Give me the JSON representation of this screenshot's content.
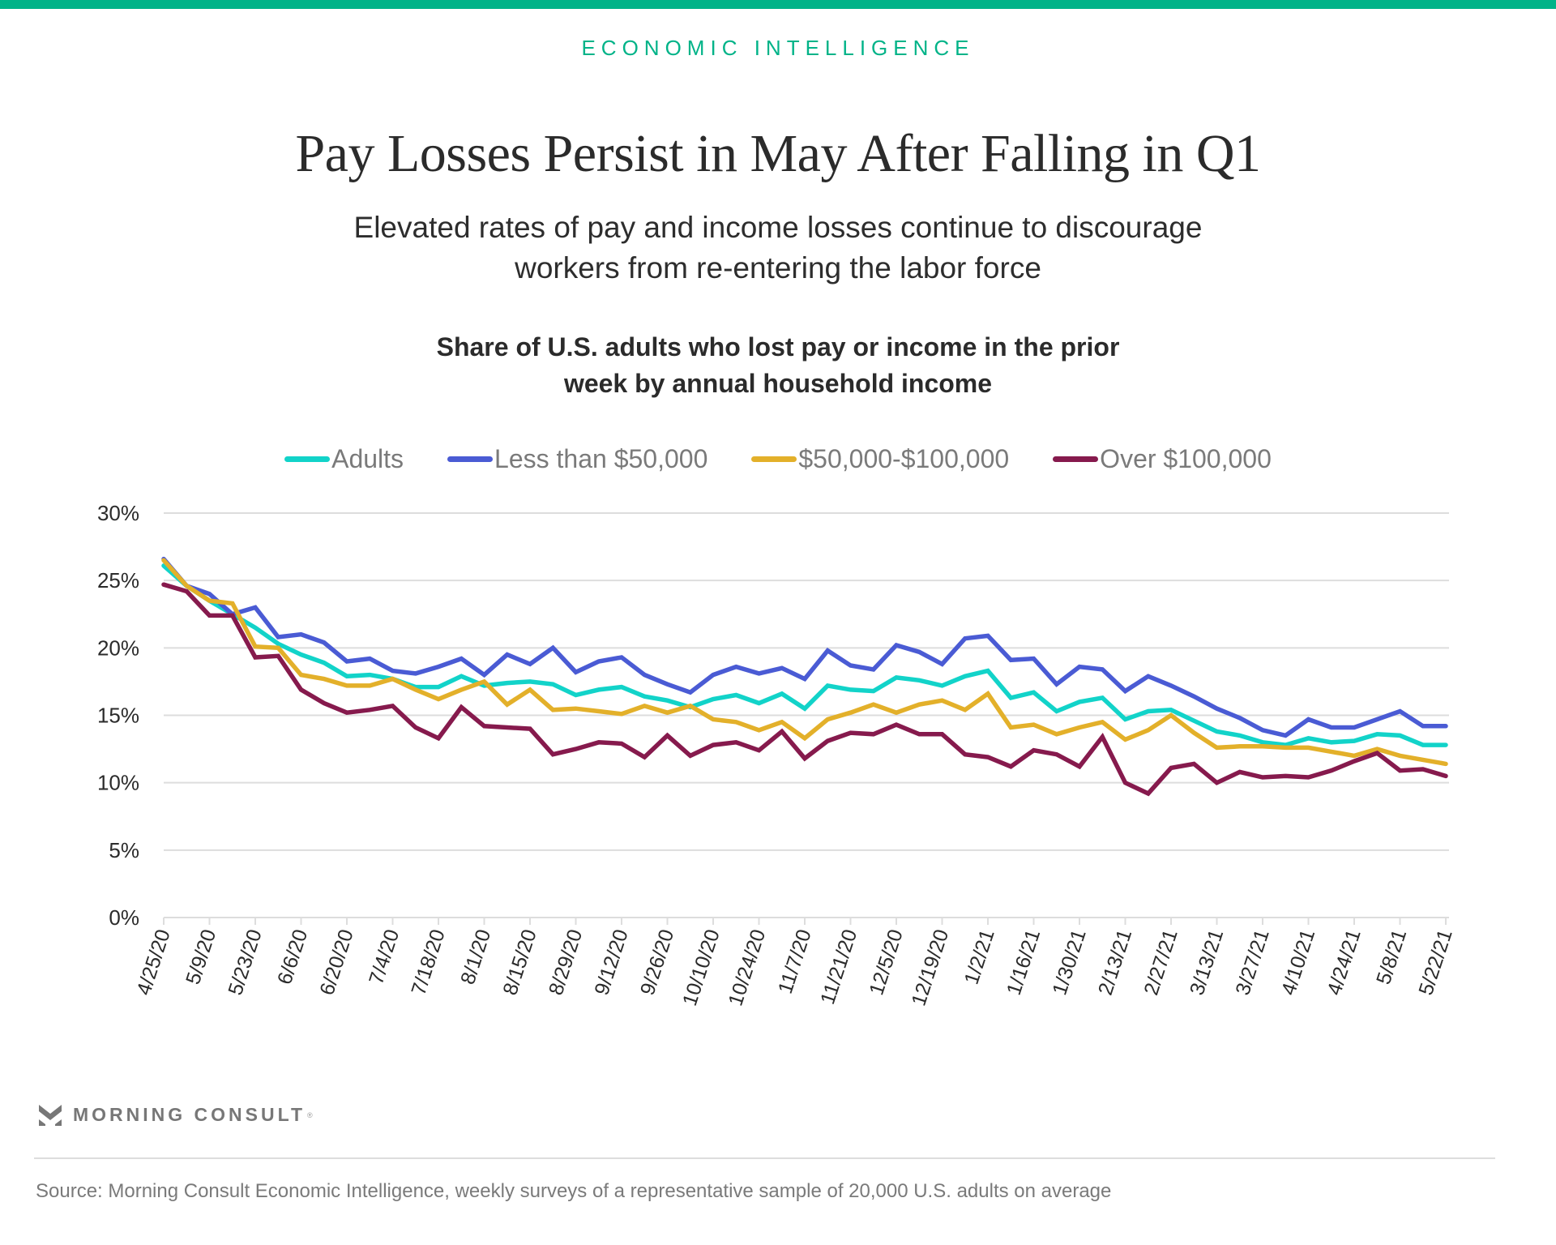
{
  "header": {
    "kicker": "ECONOMIC INTELLIGENCE",
    "title": "Pay Losses Persist in May After Falling in Q1",
    "subtitle_lines": [
      "Elevated rates of pay and income losses continue to discourage",
      "workers from re-entering the labor force"
    ]
  },
  "colors": {
    "brand": "#00b388",
    "adults": "#12d3c9",
    "less_than_50k": "#4a5bd4",
    "mid_income": "#e3b02a",
    "over_100k": "#861a4d",
    "grid": "#dddddd"
  },
  "chart_data": {
    "type": "line",
    "title_lines": [
      "Share of U.S. adults who lost pay or income in the prior",
      "week by annual household income"
    ],
    "xlabel": "",
    "ylabel": "",
    "ylim": [
      0,
      30
    ],
    "yticks": [
      0,
      5,
      10,
      15,
      20,
      25,
      30
    ],
    "ytick_labels": [
      "0%",
      "5%",
      "10%",
      "15%",
      "20%",
      "25%",
      "30%"
    ],
    "grid": true,
    "legend_position": "top",
    "x_tick_labels": [
      "4/25/20",
      "5/9/20",
      "5/23/20",
      "6/6/20",
      "6/20/20",
      "7/4/20",
      "7/18/20",
      "8/1/20",
      "8/15/20",
      "8/29/20",
      "9/12/20",
      "9/26/20",
      "10/10/20",
      "10/24/20",
      "11/7/20",
      "11/21/20",
      "12/5/20",
      "12/19/20",
      "1/2/21",
      "1/16/21",
      "1/30/21",
      "2/13/21",
      "2/27/21",
      "3/13/21",
      "3/27/21",
      "4/10/21",
      "4/24/21",
      "5/8/21",
      "5/22/21"
    ],
    "x_tick_every_n_weeks": 2,
    "n_weeks": 57,
    "series": [
      {
        "name": "Adults",
        "color_key": "adults",
        "values": [
          26.1,
          24.6,
          23.5,
          22.5,
          21.5,
          20.3,
          19.5,
          18.9,
          17.9,
          18.0,
          17.7,
          17.1,
          17.1,
          17.9,
          17.2,
          17.4,
          17.5,
          17.3,
          16.5,
          16.9,
          17.1,
          16.4,
          16.1,
          15.6,
          16.2,
          16.5,
          15.9,
          16.6,
          15.5,
          17.2,
          16.9,
          16.8,
          17.8,
          17.6,
          17.2,
          17.9,
          18.3,
          16.3,
          16.7,
          15.3,
          16.0,
          16.3,
          14.7,
          15.3,
          15.4,
          14.6,
          13.8,
          13.5,
          13.0,
          12.8,
          13.3,
          13.0,
          13.1,
          13.6,
          13.5,
          12.8,
          12.8
        ]
      },
      {
        "name": "Less than $50,000",
        "color_key": "less_than_50k",
        "values": [
          26.6,
          24.6,
          24.0,
          22.5,
          23.0,
          20.8,
          21.0,
          20.4,
          19.0,
          19.2,
          18.3,
          18.1,
          18.6,
          19.2,
          18.0,
          19.5,
          18.8,
          20.0,
          18.2,
          19.0,
          19.3,
          18.0,
          17.3,
          16.7,
          18.0,
          18.6,
          18.1,
          18.5,
          17.7,
          19.8,
          18.7,
          18.4,
          20.2,
          19.7,
          18.8,
          20.7,
          20.9,
          19.1,
          19.2,
          17.3,
          18.6,
          18.4,
          16.8,
          17.9,
          17.2,
          16.4,
          15.5,
          14.8,
          13.9,
          13.5,
          14.7,
          14.1,
          14.1,
          14.7,
          15.3,
          14.2,
          14.2
        ]
      },
      {
        "name": "$50,000-$100,000",
        "color_key": "mid_income",
        "values": [
          26.5,
          24.6,
          23.5,
          23.3,
          20.1,
          20.0,
          18.0,
          17.7,
          17.2,
          17.2,
          17.7,
          16.9,
          16.2,
          16.9,
          17.5,
          15.8,
          16.9,
          15.4,
          15.5,
          15.3,
          15.1,
          15.7,
          15.2,
          15.7,
          14.7,
          14.5,
          13.9,
          14.5,
          13.3,
          14.7,
          15.2,
          15.8,
          15.2,
          15.8,
          16.1,
          15.4,
          16.6,
          14.1,
          14.3,
          13.6,
          14.1,
          14.5,
          13.2,
          13.9,
          15.0,
          13.7,
          12.6,
          12.7,
          12.7,
          12.6,
          12.6,
          12.3,
          12.0,
          12.5,
          12.0,
          11.7,
          11.4
        ]
      },
      {
        "name": "Over $100,000",
        "color_key": "over_100k",
        "values": [
          24.7,
          24.2,
          22.4,
          22.4,
          19.3,
          19.4,
          16.9,
          15.9,
          15.2,
          15.4,
          15.7,
          14.1,
          13.3,
          15.6,
          14.2,
          14.1,
          14.0,
          12.1,
          12.5,
          13.0,
          12.9,
          11.9,
          13.5,
          12.0,
          12.8,
          13.0,
          12.4,
          13.8,
          11.8,
          13.1,
          13.7,
          13.6,
          14.3,
          13.6,
          13.6,
          12.1,
          11.9,
          11.2,
          12.4,
          12.1,
          11.2,
          13.4,
          10.0,
          9.2,
          11.1,
          11.4,
          10.0,
          10.8,
          10.4,
          10.5,
          10.4,
          10.9,
          11.6,
          12.2,
          10.9,
          11.0,
          10.5
        ]
      }
    ]
  },
  "footer": {
    "logo_text": "MORNING CONSULT",
    "logo_mark": "®",
    "source": "Source: Morning Consult Economic Intelligence, weekly surveys of a representative sample of 20,000 U.S. adults on average"
  }
}
